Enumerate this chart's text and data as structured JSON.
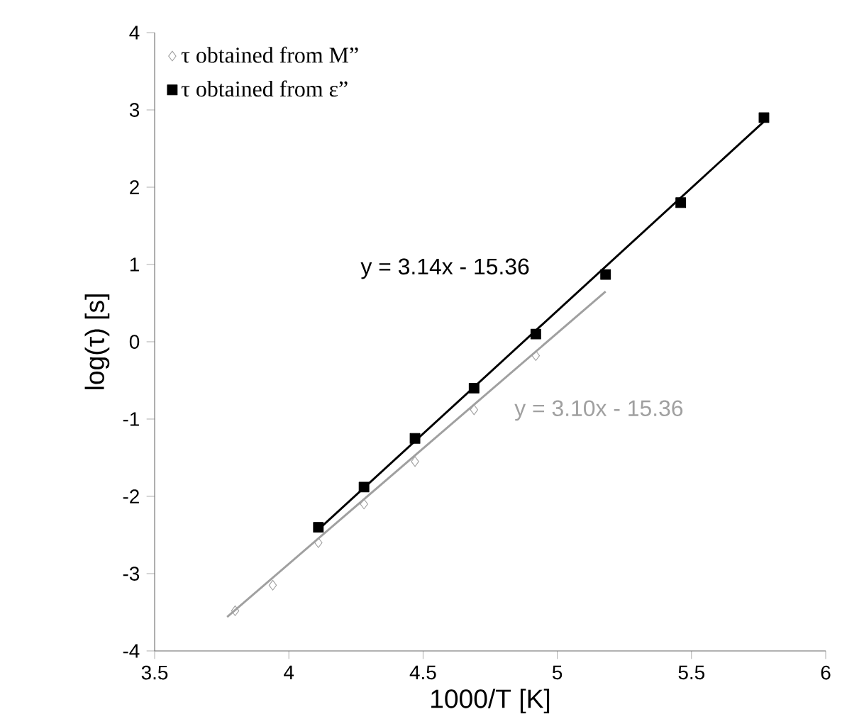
{
  "chart_data": {
    "type": "scatter",
    "xlabel": "1000/T [K]",
    "ylabel": "log(τ) [s]",
    "xlim": [
      3.5,
      6
    ],
    "ylim": [
      -4,
      4
    ],
    "xticks": [
      3.5,
      4,
      4.5,
      5,
      5.5,
      6
    ],
    "yticks": [
      -4,
      -3,
      -2,
      -1,
      0,
      1,
      2,
      3,
      4
    ],
    "grid": false,
    "legend": "top left",
    "series": [
      {
        "type": "line",
        "color": "#a0a0a0",
        "marker": "none",
        "x": [
          3.77,
          5.18
        ],
        "values": [
          -3.56,
          0.65
        ]
      },
      {
        "type": "line",
        "color": "#000000",
        "marker": "none",
        "x": [
          4.11,
          5.77
        ],
        "values": [
          -2.43,
          2.85
        ]
      },
      {
        "name": "τ obtained from M”",
        "color": "#a0a0a0",
        "marker": "diamond",
        "x": [
          3.8,
          3.94,
          4.11,
          4.28,
          4.47,
          4.69,
          4.92
        ],
        "values": [
          -3.48,
          -3.15,
          -2.6,
          -2.1,
          -1.55,
          -0.88,
          -0.18
        ]
      },
      {
        "name": "τ obtained from ε”",
        "color": "#000000",
        "marker": "square",
        "x": [
          4.11,
          4.28,
          4.47,
          4.69,
          4.92,
          5.18,
          5.46,
          5.77
        ],
        "values": [
          -2.4,
          -1.88,
          -1.25,
          -0.6,
          0.1,
          0.87,
          1.8,
          2.9
        ]
      }
    ],
    "annotations": [
      "y = 3.14x - 15.36",
      "y = 3.10x - 15.36"
    ]
  }
}
